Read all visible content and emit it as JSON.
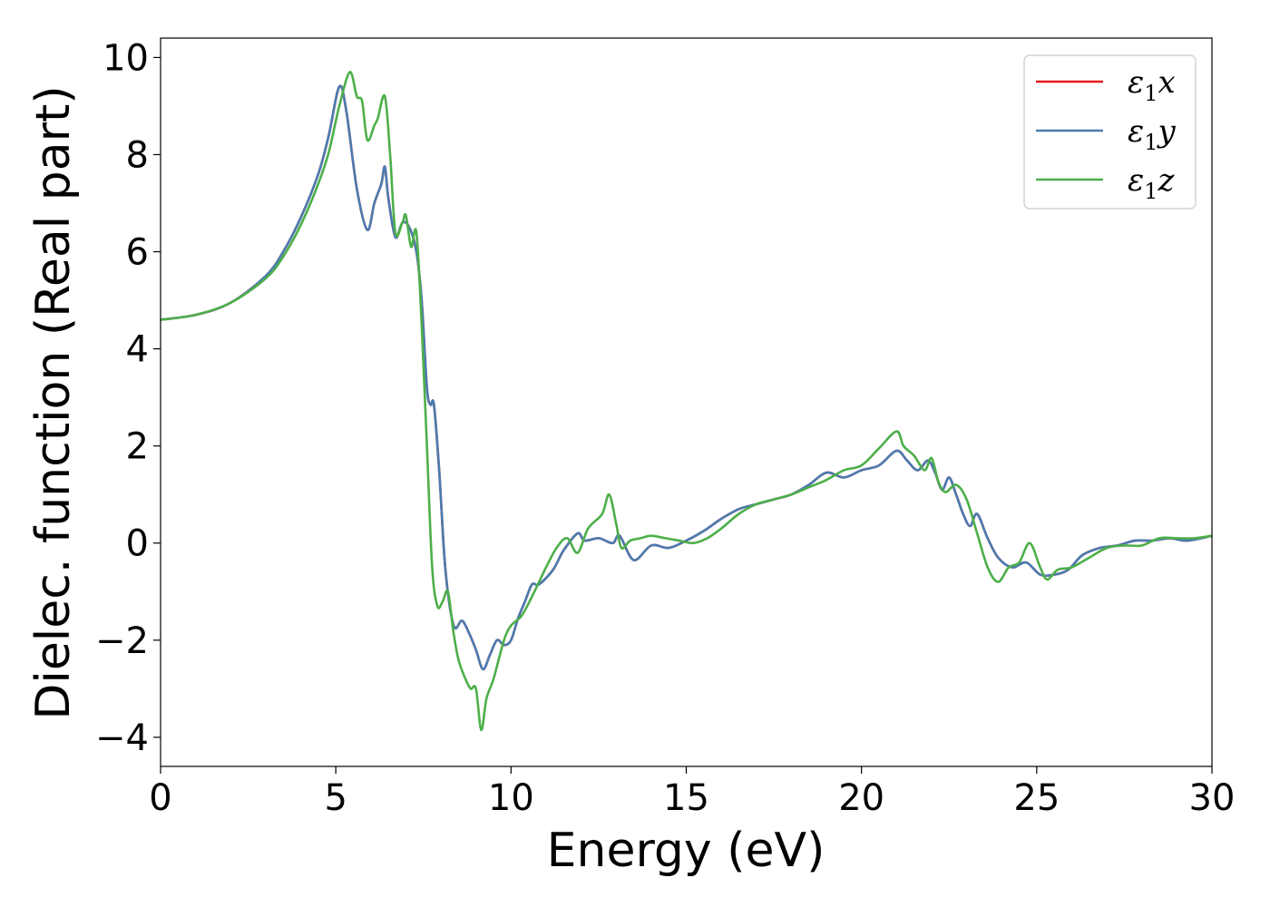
{
  "chart_data": {
    "type": "line",
    "xlabel": "Energy (eV)",
    "ylabel": "Dielec. function (Real part)",
    "xlim": [
      0,
      30
    ],
    "ylim": [
      -4.6,
      10.4
    ],
    "xticks": [
      0,
      5,
      10,
      15,
      20,
      25,
      30
    ],
    "xtick_labels": [
      "0",
      "5",
      "10",
      "15",
      "20",
      "25",
      "30"
    ],
    "yticks": [
      -4,
      -2,
      0,
      2,
      4,
      6,
      8,
      10
    ],
    "ytick_labels": [
      "−4",
      "−2",
      "0",
      "2",
      "4",
      "6",
      "8",
      "10"
    ],
    "grid": false,
    "legend_position": "top-right",
    "series": [
      {
        "name": "ε1x",
        "legend_main": "ε",
        "legend_sub": "1",
        "legend_end": "x",
        "color": "#e41a1c",
        "x": [
          0,
          1,
          2,
          3,
          3.5,
          4,
          4.5,
          4.8,
          5.1,
          5.3,
          5.6,
          5.9,
          6.1,
          6.3,
          6.4,
          6.5,
          6.7,
          6.9,
          7.1,
          7.3,
          7.45,
          7.6,
          7.7,
          7.8,
          7.95,
          8.1,
          8.25,
          8.4,
          8.6,
          8.8,
          9.0,
          9.2,
          9.4,
          9.6,
          9.8,
          10.0,
          10.2,
          10.4,
          10.6,
          10.8,
          11.2,
          11.5,
          11.9,
          12.1,
          12.5,
          12.9,
          13.1,
          13.5,
          14.0,
          14.5,
          15.0,
          15.5,
          16.0,
          16.5,
          17.0,
          17.5,
          18.0,
          18.5,
          19.0,
          19.5,
          20.0,
          20.5,
          21.0,
          21.3,
          21.6,
          21.9,
          22.1,
          22.3,
          22.5,
          22.7,
          22.9,
          23.1,
          23.3,
          23.6,
          23.9,
          24.3,
          24.7,
          25.1,
          25.5,
          25.9,
          26.3,
          26.8,
          27.3,
          27.8,
          28.3,
          28.8,
          29.3,
          30.0
        ],
        "y": [
          4.6,
          4.7,
          4.95,
          5.5,
          6.0,
          6.7,
          7.6,
          8.4,
          9.4,
          8.9,
          7.3,
          6.45,
          7.0,
          7.4,
          7.75,
          7.1,
          6.3,
          6.6,
          6.5,
          6.0,
          5.0,
          3.2,
          2.85,
          2.85,
          1.5,
          -0.3,
          -1.3,
          -1.75,
          -1.6,
          -1.85,
          -2.2,
          -2.6,
          -2.3,
          -2.0,
          -2.1,
          -2.0,
          -1.55,
          -1.2,
          -0.85,
          -0.85,
          -0.55,
          -0.15,
          0.2,
          0.05,
          0.1,
          0.0,
          0.15,
          -0.35,
          -0.05,
          -0.1,
          0.05,
          0.25,
          0.5,
          0.7,
          0.8,
          0.9,
          1.0,
          1.2,
          1.45,
          1.35,
          1.5,
          1.6,
          1.9,
          1.7,
          1.5,
          1.7,
          1.45,
          1.1,
          1.35,
          1.0,
          0.6,
          0.35,
          0.6,
          0.1,
          -0.3,
          -0.5,
          -0.4,
          -0.65,
          -0.65,
          -0.55,
          -0.25,
          -0.1,
          -0.05,
          0.05,
          0.05,
          0.1,
          0.05,
          0.15
        ]
      },
      {
        "name": "ε1y",
        "legend_main": "ε",
        "legend_sub": "1",
        "legend_end": "y",
        "color": "#4a7bb0",
        "x": [
          0,
          1,
          2,
          3,
          3.5,
          4,
          4.5,
          4.8,
          5.1,
          5.3,
          5.6,
          5.9,
          6.1,
          6.3,
          6.4,
          6.5,
          6.7,
          6.9,
          7.1,
          7.3,
          7.45,
          7.6,
          7.7,
          7.8,
          7.95,
          8.1,
          8.25,
          8.4,
          8.6,
          8.8,
          9.0,
          9.2,
          9.4,
          9.6,
          9.8,
          10.0,
          10.2,
          10.4,
          10.6,
          10.8,
          11.2,
          11.5,
          11.9,
          12.1,
          12.5,
          12.9,
          13.1,
          13.5,
          14.0,
          14.5,
          15.0,
          15.5,
          16.0,
          16.5,
          17.0,
          17.5,
          18.0,
          18.5,
          19.0,
          19.5,
          20.0,
          20.5,
          21.0,
          21.3,
          21.6,
          21.9,
          22.1,
          22.3,
          22.5,
          22.7,
          22.9,
          23.1,
          23.3,
          23.6,
          23.9,
          24.3,
          24.7,
          25.1,
          25.5,
          25.9,
          26.3,
          26.8,
          27.3,
          27.8,
          28.3,
          28.8,
          29.3,
          30.0
        ],
        "y": [
          4.6,
          4.7,
          4.95,
          5.5,
          6.0,
          6.7,
          7.6,
          8.4,
          9.4,
          8.9,
          7.3,
          6.45,
          7.0,
          7.4,
          7.75,
          7.1,
          6.3,
          6.6,
          6.5,
          6.0,
          5.0,
          3.2,
          2.85,
          2.85,
          1.5,
          -0.3,
          -1.3,
          -1.75,
          -1.6,
          -1.85,
          -2.2,
          -2.6,
          -2.3,
          -2.0,
          -2.1,
          -2.0,
          -1.55,
          -1.2,
          -0.85,
          -0.85,
          -0.55,
          -0.15,
          0.2,
          0.05,
          0.1,
          0.0,
          0.15,
          -0.35,
          -0.05,
          -0.1,
          0.05,
          0.25,
          0.5,
          0.7,
          0.8,
          0.9,
          1.0,
          1.2,
          1.45,
          1.35,
          1.5,
          1.6,
          1.9,
          1.7,
          1.5,
          1.7,
          1.45,
          1.1,
          1.35,
          1.0,
          0.6,
          0.35,
          0.6,
          0.1,
          -0.3,
          -0.5,
          -0.4,
          -0.65,
          -0.65,
          -0.55,
          -0.25,
          -0.1,
          -0.05,
          0.05,
          0.05,
          0.1,
          0.05,
          0.15
        ]
      },
      {
        "name": "ε1z",
        "legend_main": "ε",
        "legend_sub": "1",
        "legend_end": "z",
        "color": "#4daf4a",
        "x": [
          0,
          1,
          2,
          3,
          3.5,
          4,
          4.5,
          4.8,
          5.1,
          5.4,
          5.6,
          5.75,
          5.9,
          6.1,
          6.2,
          6.4,
          6.55,
          6.7,
          6.9,
          7.0,
          7.15,
          7.3,
          7.45,
          7.6,
          7.75,
          7.9,
          8.05,
          8.2,
          8.35,
          8.5,
          8.7,
          8.85,
          9.0,
          9.15,
          9.3,
          9.5,
          9.8,
          10.0,
          10.3,
          10.6,
          11.0,
          11.3,
          11.6,
          11.9,
          12.2,
          12.6,
          12.8,
          13.0,
          13.15,
          13.4,
          13.7,
          14.0,
          14.4,
          14.8,
          15.2,
          15.6,
          16.0,
          16.5,
          17.0,
          17.5,
          18.0,
          18.5,
          19.0,
          19.5,
          20.0,
          20.5,
          21.0,
          21.2,
          21.5,
          21.8,
          22.0,
          22.2,
          22.4,
          22.7,
          23.0,
          23.3,
          23.6,
          23.9,
          24.2,
          24.5,
          24.8,
          25.1,
          25.3,
          25.6,
          26.0,
          26.5,
          27.0,
          27.5,
          28.0,
          28.5,
          29.0,
          29.5,
          30.0
        ],
        "y": [
          4.6,
          4.7,
          4.95,
          5.45,
          5.9,
          6.55,
          7.4,
          8.05,
          9.0,
          9.7,
          9.2,
          9.1,
          8.3,
          8.6,
          8.75,
          9.2,
          8.0,
          6.4,
          6.6,
          6.75,
          6.1,
          6.4,
          4.5,
          2.0,
          -0.5,
          -1.3,
          -1.2,
          -1.0,
          -1.8,
          -2.4,
          -2.8,
          -3.0,
          -3.0,
          -3.85,
          -3.2,
          -2.8,
          -2.0,
          -1.7,
          -1.5,
          -1.1,
          -0.5,
          -0.1,
          0.1,
          -0.2,
          0.3,
          0.6,
          1.0,
          0.4,
          -0.1,
          0.05,
          0.1,
          0.15,
          0.1,
          0.05,
          0.0,
          0.1,
          0.3,
          0.6,
          0.8,
          0.9,
          1.0,
          1.15,
          1.3,
          1.5,
          1.6,
          1.95,
          2.3,
          2.0,
          1.8,
          1.5,
          1.75,
          1.25,
          1.05,
          1.2,
          0.9,
          0.2,
          -0.5,
          -0.8,
          -0.5,
          -0.4,
          0.0,
          -0.5,
          -0.75,
          -0.55,
          -0.5,
          -0.3,
          -0.1,
          -0.05,
          -0.05,
          0.1,
          0.1,
          0.1,
          0.15
        ]
      }
    ]
  }
}
